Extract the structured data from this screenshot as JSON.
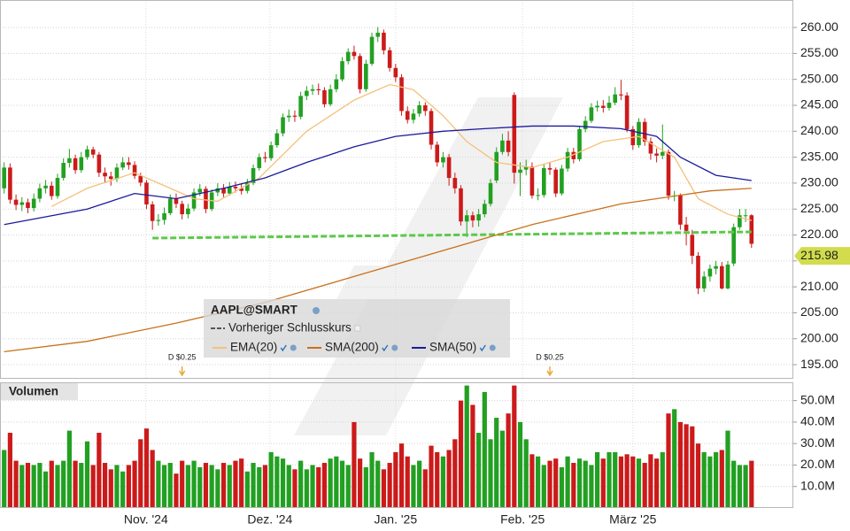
{
  "chart_data": [
    {
      "type": "candlestick",
      "title": "AAPL@SMART",
      "up_color": "#22a022",
      "down_color": "#cc1a1a",
      "xlim": [
        -0.7,
        132.9
      ],
      "ylim": [
        192.45,
        265.3
      ],
      "yticks": [
        {
          "value": 195,
          "label": "195.00"
        },
        {
          "value": 200,
          "label": "200.00"
        },
        {
          "value": 205,
          "label": "205.00"
        },
        {
          "value": 210,
          "label": "210.00"
        },
        {
          "value": 215,
          "label": "215.00"
        },
        {
          "value": 220,
          "label": "220.00"
        },
        {
          "value": 225,
          "label": "225.00"
        },
        {
          "value": 230,
          "label": "230.00"
        },
        {
          "value": 235,
          "label": "235.00"
        },
        {
          "value": 240,
          "label": "240.00"
        },
        {
          "value": 245,
          "label": "245.00"
        },
        {
          "value": 250,
          "label": "250.00"
        },
        {
          "value": 255,
          "label": "255.00"
        },
        {
          "value": 260,
          "label": "260.00"
        }
      ],
      "grid": true,
      "open": [
        229.0,
        233.0,
        226.8,
        225.8,
        226.3,
        225.2,
        227.0,
        229.0,
        229.5,
        227.5,
        231.0,
        233.9,
        234.8,
        232.5,
        235.0,
        236.5,
        235.5,
        232.0,
        231.3,
        230.8,
        233.0,
        234.0,
        233.5,
        231.4,
        230.1,
        225.9,
        222.7,
        222.9,
        224.2,
        227.0,
        226.0,
        224.0,
        225.1,
        228.2,
        228.9,
        225.0,
        228.2,
        229.0,
        228.0,
        229.3,
        229.0,
        228.5,
        230.0,
        232.9,
        235.0,
        234.8,
        237.3,
        239.6,
        242.7,
        243.0,
        242.8,
        246.8,
        247.8,
        248.1,
        247.9,
        245.2,
        248.1,
        250.0,
        253.5,
        255.3,
        254.5,
        248.1,
        253.0,
        258.2,
        259.0,
        255.6,
        252.2,
        250.4,
        243.9,
        242.2,
        243.4,
        245.0,
        243.9,
        237.4,
        234.0,
        235.0,
        231.0,
        229.0,
        222.6,
        223.8,
        222.8,
        224.0,
        226.0,
        230.5,
        236.0,
        238.2,
        247.0,
        232.0,
        232.6,
        233.2,
        227.6,
        227.7,
        232.9,
        232.6,
        228.0,
        232.8,
        236.0,
        234.6,
        240.4,
        242.0,
        244.6,
        244.9,
        244.5,
        245.5,
        247.1,
        246.9,
        240.4,
        237.3,
        241.8,
        238.0,
        235.7,
        235.3,
        236.0,
        227.6,
        227.6,
        222.0,
        220.0,
        216.0,
        209.7,
        212.0,
        213.5,
        214.0,
        209.7,
        214.5,
        221.5,
        223.8,
        223.8
      ],
      "high": [
        234.0,
        233.8,
        227.8,
        227.3,
        227.0,
        228.0,
        229.9,
        230.6,
        230.3,
        231.8,
        234.8,
        236.6,
        235.5,
        236.0,
        237.2,
        237.0,
        236.0,
        233.0,
        232.2,
        233.8,
        235.0,
        235.0,
        234.2,
        232.0,
        230.6,
        226.5,
        224.0,
        225.3,
        227.8,
        228.0,
        226.6,
        226.0,
        229.0,
        229.8,
        229.4,
        228.8,
        230.0,
        229.8,
        230.2,
        230.3,
        230.0,
        230.8,
        233.6,
        235.7,
        236.0,
        238.0,
        240.4,
        243.4,
        244.2,
        244.0,
        247.6,
        248.7,
        249.0,
        249.2,
        248.5,
        249.0,
        251.0,
        254.3,
        256.0,
        256.5,
        255.0,
        253.8,
        259.0,
        260.1,
        259.6,
        256.2,
        253.0,
        251.0,
        244.8,
        244.3,
        245.8,
        245.6,
        244.4,
        238.0,
        236.0,
        235.6,
        232.0,
        229.6,
        224.8,
        224.5,
        225.0,
        226.8,
        230.8,
        236.9,
        239.5,
        240.0,
        247.5,
        234.0,
        234.5,
        234.0,
        229.0,
        233.6,
        234.0,
        233.0,
        233.5,
        236.8,
        236.8,
        241.0,
        242.9,
        245.4,
        245.9,
        246.0,
        246.8,
        248.5,
        249.9,
        247.5,
        241.0,
        242.5,
        242.5,
        238.8,
        236.7,
        241.3,
        236.5,
        228.5,
        228.0,
        223.5,
        221.0,
        216.7,
        213.0,
        214.3,
        215.0,
        214.8,
        215.0,
        222.2,
        225.0,
        225.0,
        224.0
      ],
      "low": [
        228.0,
        226.0,
        224.8,
        224.6,
        224.2,
        224.5,
        226.3,
        228.0,
        226.8,
        227.0,
        230.5,
        233.0,
        231.8,
        232.0,
        234.5,
        234.8,
        231.2,
        230.0,
        229.5,
        230.2,
        232.5,
        232.6,
        230.8,
        229.4,
        225.0,
        221.0,
        221.8,
        222.0,
        223.8,
        225.2,
        223.0,
        223.2,
        224.6,
        227.5,
        224.2,
        224.6,
        227.5,
        227.3,
        227.6,
        228.2,
        227.8,
        228.0,
        229.6,
        232.4,
        234.0,
        234.3,
        236.8,
        239.0,
        241.8,
        241.8,
        242.3,
        246.0,
        247.0,
        247.0,
        244.6,
        244.8,
        247.5,
        249.6,
        252.9,
        253.8,
        247.3,
        247.6,
        252.6,
        257.2,
        254.8,
        251.5,
        249.5,
        243.0,
        241.5,
        241.5,
        242.8,
        243.0,
        236.5,
        233.2,
        233.0,
        229.5,
        228.0,
        221.8,
        219.6,
        221.5,
        221.6,
        223.4,
        225.5,
        230.0,
        235.5,
        235.2,
        229.9,
        227.5,
        231.5,
        227.0,
        226.7,
        227.2,
        231.6,
        227.3,
        227.6,
        232.2,
        233.8,
        234.2,
        239.8,
        241.6,
        243.8,
        243.6,
        244.0,
        245.0,
        246.0,
        239.8,
        236.4,
        236.8,
        237.2,
        234.5,
        234.0,
        234.6,
        226.8,
        226.5,
        221.0,
        218.0,
        214.4,
        208.6,
        209.0,
        211.0,
        212.4,
        209.5,
        209.5,
        214.0,
        221.0,
        222.5,
        217.5
      ],
      "close": [
        233.0,
        226.8,
        225.8,
        226.3,
        225.2,
        227.0,
        229.0,
        229.5,
        227.5,
        231.0,
        233.9,
        234.8,
        232.5,
        235.0,
        236.5,
        235.5,
        232.0,
        231.3,
        230.8,
        233.0,
        234.0,
        233.5,
        231.4,
        230.1,
        225.9,
        222.7,
        222.9,
        224.2,
        227.0,
        226.0,
        224.0,
        225.1,
        228.2,
        228.9,
        225.0,
        228.2,
        229.0,
        228.0,
        229.3,
        229.0,
        228.5,
        230.0,
        232.9,
        235.0,
        234.8,
        237.3,
        239.6,
        242.7,
        243.0,
        242.8,
        246.8,
        247.8,
        248.1,
        247.9,
        245.2,
        248.1,
        250.0,
        253.5,
        255.3,
        254.5,
        248.1,
        253.0,
        258.2,
        259.0,
        255.6,
        252.2,
        250.4,
        243.9,
        242.2,
        243.4,
        245.0,
        243.9,
        237.4,
        234.0,
        235.0,
        231.0,
        229.0,
        222.6,
        223.8,
        222.8,
        224.0,
        226.0,
        230.0,
        236.0,
        238.2,
        236.0,
        232.0,
        232.6,
        233.2,
        227.6,
        227.7,
        232.9,
        232.6,
        228.0,
        232.8,
        236.0,
        234.6,
        240.4,
        242.0,
        244.6,
        244.9,
        244.5,
        245.5,
        247.1,
        246.9,
        240.4,
        237.3,
        241.8,
        238.0,
        235.7,
        235.3,
        236.0,
        227.6,
        227.6,
        222.0,
        220.8,
        216.0,
        209.7,
        212.0,
        213.5,
        214.0,
        209.7,
        214.3,
        221.5,
        223.8,
        223.8,
        218.3
      ],
      "series": [
        {
          "name": "Vorheriger Schlusskurs",
          "color": "#5cc94a",
          "dashed": true,
          "x": [
            25,
            126
          ],
          "values": [
            219.4,
            220.6
          ]
        },
        {
          "name": "EMA(20)",
          "color": "#f3c27a",
          "x": [
            8,
            14,
            22,
            28,
            32,
            36,
            43,
            51,
            59,
            65,
            69,
            74,
            78,
            83,
            89,
            95,
            101,
            107,
            113,
            117,
            122,
            126
          ],
          "values": [
            225.5,
            229.0,
            232.0,
            229.0,
            227.0,
            226.5,
            231.0,
            240.0,
            246.0,
            249.0,
            248.0,
            243.0,
            238.0,
            234.0,
            233.0,
            235.0,
            238.0,
            239.0,
            235.0,
            227.0,
            224.0,
            222.8
          ]
        },
        {
          "name": "SMA(200)",
          "color": "#c8701a",
          "x": [
            0,
            14,
            29,
            44,
            59,
            74,
            89,
            104,
            119,
            126
          ],
          "values": [
            197.5,
            199.5,
            203.0,
            207.0,
            212.0,
            217.0,
            222.0,
            226.0,
            228.5,
            229.0
          ]
        },
        {
          "name": "SMA(50)",
          "color": "#1a1a9c",
          "x": [
            0,
            14,
            22,
            29,
            37,
            44,
            51,
            59,
            66,
            74,
            81,
            89,
            96,
            104,
            110,
            114,
            120,
            126
          ],
          "values": [
            222.0,
            225.0,
            228.0,
            227.0,
            229.0,
            231.0,
            234.0,
            237.0,
            239.0,
            240.0,
            240.5,
            241.0,
            241.0,
            240.5,
            239.0,
            235.0,
            231.5,
            230.5
          ]
        }
      ],
      "annotations": [
        {
          "x": 30,
          "label": "D $0.25"
        },
        {
          "x": 92,
          "label": "D $0.25"
        }
      ],
      "last_price": 215.98
    },
    {
      "type": "bar",
      "title": "Volumen",
      "xlim": [
        -0.7,
        132.9
      ],
      "xticks": [
        {
          "value": 23.9,
          "label": "Nov. '24"
        },
        {
          "value": 44.8,
          "label": "Dez. '24"
        },
        {
          "value": 66.0,
          "label": "Jan. '25"
        },
        {
          "value": 87.4,
          "label": "Feb. '25"
        },
        {
          "value": 106.0,
          "label": "März '25"
        }
      ],
      "ylim": [
        0,
        58500000
      ],
      "yticks": [
        {
          "value": 10000000,
          "label": "10.0M"
        },
        {
          "value": 20000000,
          "label": "20.0M"
        },
        {
          "value": 30000000,
          "label": "30.0M"
        },
        {
          "value": 40000000,
          "label": "40.0M"
        },
        {
          "value": 50000000,
          "label": "50.0M"
        }
      ],
      "grid": true,
      "values": [
        27000000,
        35000000,
        22000000,
        20000000,
        21000000,
        20000000,
        21000000,
        17000000,
        22000000,
        20000000,
        22000000,
        36000000,
        22000000,
        21000000,
        31000000,
        20000000,
        35000000,
        21000000,
        18000000,
        20000000,
        17000000,
        20000000,
        22000000,
        32000000,
        37000000,
        27000000,
        22000000,
        20000000,
        21000000,
        16000000,
        22000000,
        20000000,
        22000000,
        19000000,
        21000000,
        20000000,
        18000000,
        21000000,
        20000000,
        22000000,
        23000000,
        17000000,
        21000000,
        19000000,
        20000000,
        26000000,
        24000000,
        23000000,
        20000000,
        18000000,
        22000000,
        18000000,
        20000000,
        19000000,
        21000000,
        23000000,
        24000000,
        22000000,
        20000000,
        40000000,
        23000000,
        19000000,
        26000000,
        22000000,
        18000000,
        21000000,
        26000000,
        30000000,
        24000000,
        20000000,
        22000000,
        18000000,
        29000000,
        26000000,
        24000000,
        27000000,
        32000000,
        50000000,
        57000000,
        48000000,
        35000000,
        54000000,
        32000000,
        42000000,
        36000000,
        44000000,
        57000000,
        40000000,
        32000000,
        25000000,
        24000000,
        20000000,
        22000000,
        23000000,
        19000000,
        24000000,
        21000000,
        23000000,
        22000000,
        20000000,
        26000000,
        23000000,
        26000000,
        26000000,
        24000000,
        25000000,
        24000000,
        23000000,
        21000000,
        25000000,
        23000000,
        26000000,
        44000000,
        46000000,
        40000000,
        39000000,
        38000000,
        30000000,
        26000000,
        24000000,
        26000000,
        27000000,
        36000000,
        22000000,
        20000000,
        20000000,
        22000000
      ]
    }
  ]
}
